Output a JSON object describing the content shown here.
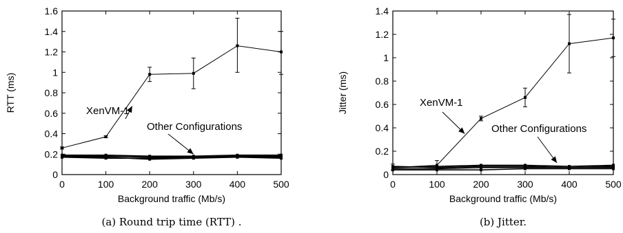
{
  "chart_data": [
    {
      "type": "line",
      "caption": "(a) Round trip time (RTT) .",
      "xlabel": "Background traffic (Mb/s)",
      "ylabel": "RTT (ms)",
      "xlim": [
        0,
        500
      ],
      "ylim": [
        0,
        1.6
      ],
      "x_ticks": [
        0,
        100,
        200,
        300,
        400,
        500
      ],
      "y_ticks": [
        0,
        0.2,
        0.4,
        0.6,
        0.8,
        1,
        1.2,
        1.4,
        1.6
      ],
      "y_tick_labels": [
        "0",
        "0.2",
        "0.4",
        "0.6",
        "0.8",
        "1",
        "1.2",
        "1.4",
        "1.6"
      ],
      "x": [
        0,
        100,
        200,
        300,
        400,
        500
      ],
      "series": [
        {
          "values": [
            0.26,
            0.37,
            0.98,
            0.99,
            1.26,
            1.2
          ],
          "err_low": [
            0.25,
            0.36,
            0.91,
            0.84,
            1.0,
            0.98
          ],
          "err_high": [
            0.27,
            0.38,
            1.05,
            1.14,
            1.53,
            1.4
          ],
          "markers": true
        },
        {
          "values": [
            0.18,
            0.18,
            0.17,
            0.17,
            0.18,
            0.18
          ],
          "markers": true
        },
        {
          "values": [
            0.17,
            0.16,
            0.16,
            0.17,
            0.17,
            0.17
          ],
          "markers": true
        },
        {
          "values": [
            0.19,
            0.19,
            0.18,
            0.18,
            0.19,
            0.19
          ],
          "markers": true
        },
        {
          "values": [
            0.17,
            0.17,
            0.15,
            0.16,
            0.17,
            0.16
          ],
          "markers": true
        }
      ],
      "annotations": [
        {
          "text": "XenVM-1",
          "points_to": {
            "x": 160,
            "y": 0.67
          }
        },
        {
          "text": "Other Configurations",
          "points_to": {
            "x": 300,
            "y": 0.2
          }
        }
      ],
      "grid": false
    },
    {
      "type": "line",
      "caption": "(b) Jitter.",
      "xlabel": "Background traffic (Mb/s)",
      "ylabel": "Jitter (ms)",
      "xlim": [
        0,
        500
      ],
      "ylim": [
        0,
        1.4
      ],
      "x_ticks": [
        0,
        100,
        200,
        300,
        400,
        500
      ],
      "y_ticks": [
        0,
        0.2,
        0.4,
        0.6,
        0.8,
        1,
        1.2,
        1.4
      ],
      "y_tick_labels": [
        "0",
        "0.2",
        "0.4",
        "0.6",
        "0.8",
        "1",
        "1.2",
        "1.4"
      ],
      "x": [
        0,
        100,
        200,
        300,
        400,
        500
      ],
      "series": [
        {
          "values": [
            0.06,
            0.08,
            0.48,
            0.66,
            1.12,
            1.17
          ],
          "err_low": [
            0.04,
            0.04,
            0.46,
            0.58,
            0.87,
            1.01
          ],
          "err_high": [
            0.09,
            0.12,
            0.5,
            0.74,
            1.37,
            1.33
          ],
          "markers": true
        },
        {
          "values": [
            0.07,
            0.06,
            0.07,
            0.07,
            0.06,
            0.07
          ],
          "markers": true
        },
        {
          "values": [
            0.05,
            0.05,
            0.06,
            0.06,
            0.06,
            0.06
          ],
          "markers": true
        },
        {
          "values": [
            0.06,
            0.07,
            0.08,
            0.08,
            0.07,
            0.08
          ],
          "markers": true
        },
        {
          "values": [
            0.04,
            0.04,
            0.04,
            0.05,
            0.05,
            0.05
          ],
          "markers": true
        }
      ],
      "annotations": [
        {
          "text": "XenVM-1",
          "points_to": {
            "x": 163,
            "y": 0.35
          }
        },
        {
          "text": "Other Configurations",
          "points_to": {
            "x": 372,
            "y": 0.1
          }
        }
      ],
      "grid": false
    }
  ]
}
